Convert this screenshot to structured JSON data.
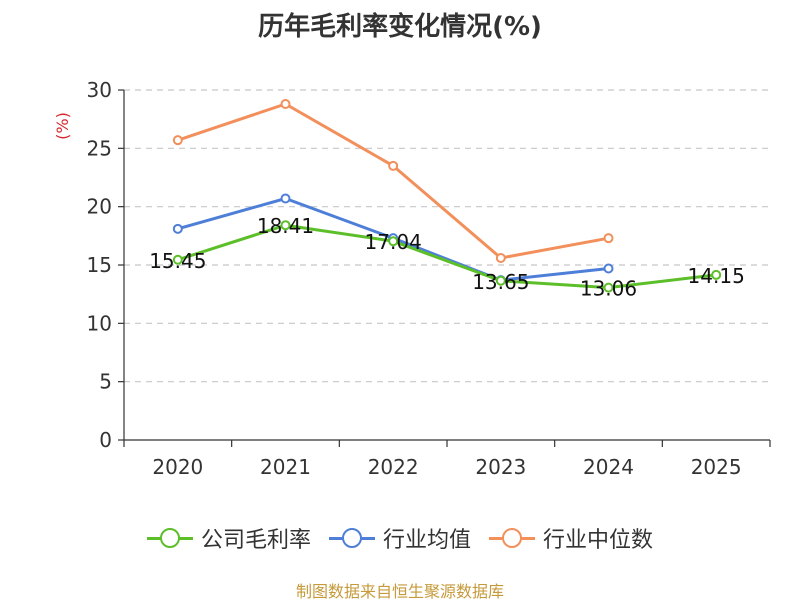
{
  "chart_data": {
    "type": "line",
    "title": "历年毛利率变化情况(%)",
    "ylabel": "(%)",
    "xlabel": "",
    "categories": [
      "2020",
      "2021",
      "2022",
      "2023",
      "2024",
      "2025"
    ],
    "ylim": [
      0,
      30
    ],
    "yticks": [
      0,
      5,
      10,
      15,
      20,
      25,
      30
    ],
    "grid": true,
    "legend_position": "bottom",
    "series": [
      {
        "name": "公司毛利率",
        "color": "#5cbf2a",
        "values": [
          15.45,
          18.41,
          17.04,
          13.65,
          13.06,
          14.15
        ],
        "labels": [
          "15.45",
          "18.41",
          "17.04",
          "13.65",
          "13.06",
          "14.15"
        ]
      },
      {
        "name": "行业均值",
        "color": "#4e7fd8",
        "values": [
          18.1,
          20.7,
          17.3,
          13.7,
          14.7,
          null
        ]
      },
      {
        "name": "行业中位数",
        "color": "#f28f5b",
        "values": [
          25.7,
          28.8,
          23.5,
          15.6,
          17.3,
          null
        ]
      }
    ]
  },
  "source": "制图数据来自恒生聚源数据库",
  "colors": {
    "ylabel": "#d6262b",
    "source": "#c69a3a",
    "axis": "#333333",
    "grid": "#c8c8c8"
  }
}
